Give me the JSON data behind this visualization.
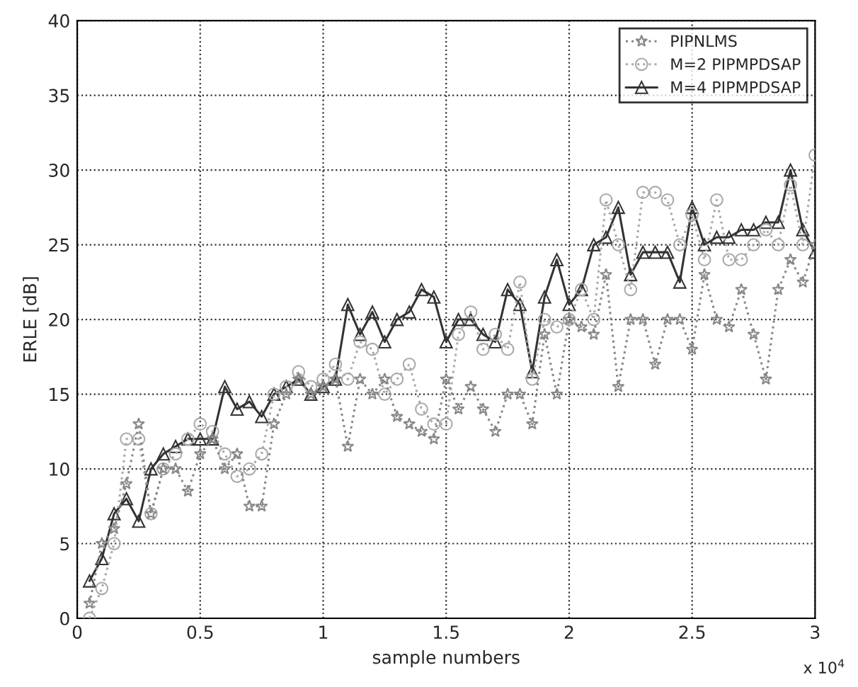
{
  "chart_data": {
    "type": "line",
    "xlabel": "sample numbers",
    "ylabel": "ERLE [dB]",
    "annotations": [
      "x 10$^{4}$"
    ],
    "x": [
      0.05,
      0.1,
      0.15,
      0.2,
      0.25,
      0.3,
      0.35,
      0.4,
      0.45,
      0.5,
      0.55,
      0.6,
      0.65,
      0.7,
      0.75,
      0.8,
      0.85,
      0.9,
      0.95,
      1.0,
      1.05,
      1.1,
      1.15,
      1.2,
      1.25,
      1.3,
      1.35,
      1.4,
      1.45,
      1.5,
      1.55,
      1.6,
      1.65,
      1.7,
      1.75,
      1.8,
      1.85,
      1.9,
      1.95,
      2.0,
      2.05,
      2.1,
      2.15,
      2.2,
      2.25,
      2.3,
      2.35,
      2.4,
      2.45,
      2.5,
      2.55,
      2.6,
      2.65,
      2.7,
      2.75,
      2.8,
      2.85,
      2.9,
      2.95,
      3.0
    ],
    "series": [
      {
        "name": "PIPNLMS",
        "color": "#888888",
        "marker": "star",
        "line_style": "dotted",
        "values": [
          1,
          5,
          6,
          9,
          13,
          7,
          10,
          10,
          8.5,
          11,
          12,
          10,
          11,
          7.5,
          7.5,
          13,
          15,
          16,
          15,
          15.5,
          16,
          11.5,
          16,
          15,
          16,
          13.5,
          13,
          12.5,
          12,
          16,
          14,
          15.5,
          14,
          12.5,
          15,
          15,
          13,
          19,
          15,
          20,
          19.5,
          19,
          23,
          15.5,
          20,
          20,
          17,
          20,
          20,
          18,
          23,
          20,
          19.5,
          22,
          19,
          16,
          22,
          24,
          22.5,
          25
        ]
      },
      {
        "name": "M=2 PIPMPDSAP",
        "color": "#aaaaaa",
        "marker": "circle",
        "line_style": "dotted",
        "values": [
          0,
          2,
          5,
          12,
          12,
          7,
          10,
          11,
          12,
          13,
          12.5,
          11,
          9.5,
          10,
          11,
          15,
          15.5,
          16.5,
          15.5,
          16,
          17,
          16,
          18.5,
          18,
          15,
          16,
          17,
          14,
          13,
          13,
          19,
          20.5,
          18,
          19,
          18,
          22.5,
          16,
          20,
          19.5,
          20,
          22,
          20,
          28,
          25,
          22,
          28.5,
          28.5,
          28,
          25,
          27,
          24,
          28,
          24,
          24,
          25,
          26,
          25,
          29,
          25,
          31
        ]
      },
      {
        "name": "M=4 PIPMPDSAP",
        "color": "#333333",
        "marker": "triangle",
        "line_style": "solid",
        "values": [
          2.5,
          4,
          7,
          8,
          6.5,
          10,
          11,
          11.5,
          12,
          12,
          12,
          15.5,
          14,
          14.5,
          13.5,
          15,
          15.5,
          16,
          15,
          15.5,
          16,
          21,
          19,
          20.5,
          18.5,
          20,
          20.5,
          22,
          21.5,
          18.5,
          20,
          20,
          19,
          18.5,
          22,
          21,
          16.5,
          21.5,
          24,
          21,
          22,
          25,
          25.5,
          27.5,
          23,
          24.5,
          24.5,
          24.5,
          22.5,
          27.5,
          25,
          25.5,
          25.5,
          26,
          26,
          26.5,
          26.5,
          30,
          26,
          24.5
        ]
      }
    ],
    "xlim": [
      0,
      3
    ],
    "xticks": [
      0,
      0.5,
      1,
      1.5,
      2,
      2.5,
      3
    ],
    "ylim": [
      0,
      40
    ],
    "yticks": [
      0,
      5,
      10,
      15,
      20,
      25,
      30,
      35,
      40
    ],
    "grid": true,
    "legend": "top right"
  }
}
